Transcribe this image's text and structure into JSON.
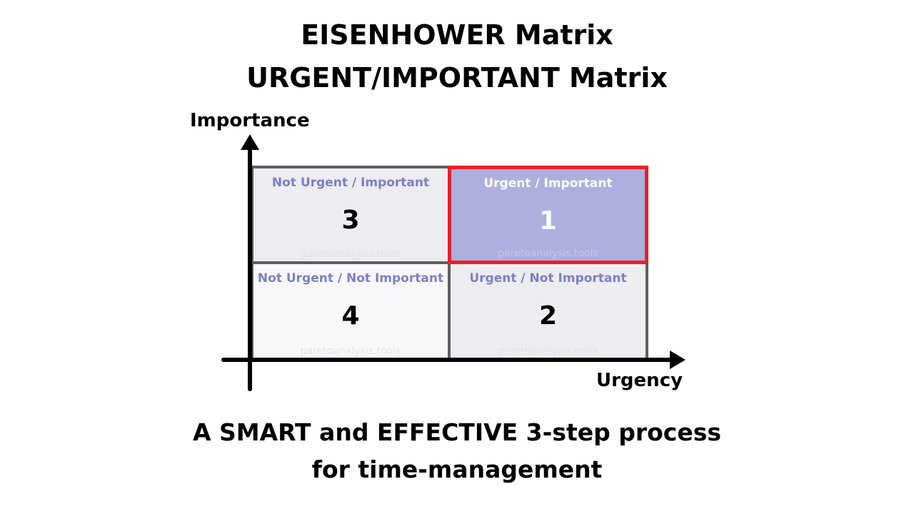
{
  "title": {
    "line1": "EISENHOWER Matrix",
    "line2": "URGENT/IMPORTANT Matrix"
  },
  "axes": {
    "y_label": "Importance",
    "x_label": "Urgency"
  },
  "quadrants": {
    "q3": {
      "label": "Not Urgent / Important",
      "number": "3",
      "watermark": "paretoanalysis.tools"
    },
    "q1": {
      "label": "Urgent / Important",
      "number": "1",
      "watermark": "paretoanalysis.tools",
      "highlighted": true
    },
    "q4": {
      "label": "Not Urgent / Not Important",
      "number": "4",
      "watermark": "paretoanalysis.tools"
    },
    "q2": {
      "label": "Urgent / Not Important",
      "number": "2",
      "watermark": "paretoanalysis.tools"
    }
  },
  "colors": {
    "highlight_fill": "#adb0de",
    "highlight_border": "#e8202a",
    "label_color": "#7b80c2",
    "cell_fill": "#ececf1",
    "cell_border": "#5e5e5e"
  },
  "footer": {
    "line1": "A SMART and EFFECTIVE 3-step process",
    "line2": "for time-management"
  }
}
